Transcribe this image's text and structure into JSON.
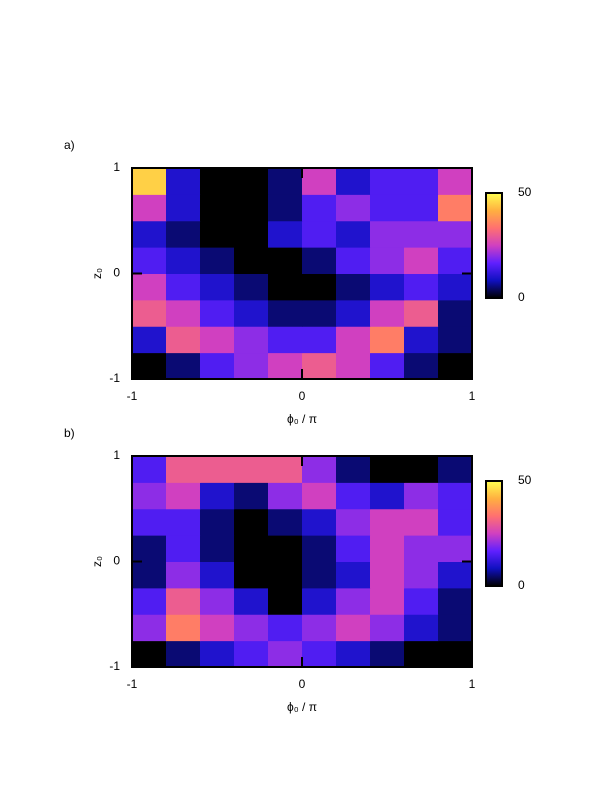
{
  "chart_data": [
    {
      "type": "heatmap",
      "title": "a)",
      "xlabel": "ϕ₀ / π",
      "ylabel": "z₀",
      "xlim": [
        -1,
        1
      ],
      "xticks": [
        -1,
        0,
        1
      ],
      "ylim": [
        -1,
        1
      ],
      "yticks": [
        -1,
        0,
        1
      ],
      "clim": [
        0,
        50
      ],
      "cticks": [
        0,
        50
      ],
      "colormap": [
        "#000000",
        "#1010c0",
        "#6020ff",
        "#d040c0",
        "#ff7070",
        "#ffb040",
        "#ffff50"
      ],
      "x": [
        -0.9,
        -0.7,
        -0.5,
        -0.3,
        -0.1,
        0.1,
        0.3,
        0.5,
        0.7,
        0.9
      ],
      "y": [
        -0.875,
        -0.625,
        -0.375,
        -0.125,
        0.125,
        0.375,
        0.625,
        0.875
      ],
      "z": [
        [
          0,
          5,
          15,
          20,
          25,
          30,
          25,
          15,
          5,
          0
        ],
        [
          10,
          30,
          25,
          20,
          15,
          15,
          25,
          35,
          10,
          5
        ],
        [
          30,
          25,
          15,
          10,
          5,
          5,
          10,
          25,
          30,
          5
        ],
        [
          25,
          15,
          10,
          5,
          0,
          0,
          5,
          10,
          15,
          10
        ],
        [
          15,
          10,
          5,
          0,
          0,
          5,
          15,
          20,
          25,
          15
        ],
        [
          10,
          5,
          0,
          0,
          10,
          15,
          10,
          20,
          20,
          20
        ],
        [
          25,
          10,
          0,
          0,
          5,
          15,
          20,
          15,
          15,
          35
        ],
        [
          45,
          10,
          0,
          0,
          5,
          25,
          10,
          15,
          15,
          25
        ]
      ]
    },
    {
      "type": "heatmap",
      "title": "b)",
      "xlabel": "ϕ₀ / π",
      "ylabel": "z₀",
      "xlim": [
        -1,
        1
      ],
      "xticks": [
        -1,
        0,
        1
      ],
      "ylim": [
        -1,
        1
      ],
      "yticks": [
        -1,
        0,
        1
      ],
      "clim": [
        0,
        50
      ],
      "cticks": [
        0,
        50
      ],
      "colormap": [
        "#000000",
        "#1010c0",
        "#6020ff",
        "#d040c0",
        "#ff7070",
        "#ffb040",
        "#ffff50"
      ],
      "x": [
        -0.9,
        -0.7,
        -0.5,
        -0.3,
        -0.1,
        0.1,
        0.3,
        0.5,
        0.7,
        0.9
      ],
      "y": [
        -0.875,
        -0.625,
        -0.375,
        -0.125,
        0.125,
        0.375,
        0.625,
        0.875
      ],
      "z": [
        [
          0,
          5,
          10,
          15,
          20,
          15,
          10,
          5,
          0,
          0
        ],
        [
          20,
          35,
          25,
          20,
          15,
          20,
          25,
          20,
          10,
          5
        ],
        [
          15,
          30,
          20,
          10,
          0,
          10,
          20,
          25,
          15,
          5
        ],
        [
          5,
          20,
          10,
          0,
          0,
          5,
          10,
          25,
          20,
          10
        ],
        [
          5,
          15,
          5,
          0,
          0,
          5,
          15,
          25,
          20,
          20
        ],
        [
          15,
          15,
          5,
          0,
          5,
          10,
          20,
          25,
          25,
          15
        ],
        [
          20,
          25,
          10,
          5,
          20,
          25,
          15,
          10,
          20,
          15
        ],
        [
          15,
          30,
          30,
          30,
          30,
          20,
          5,
          0,
          0,
          5
        ]
      ]
    }
  ]
}
